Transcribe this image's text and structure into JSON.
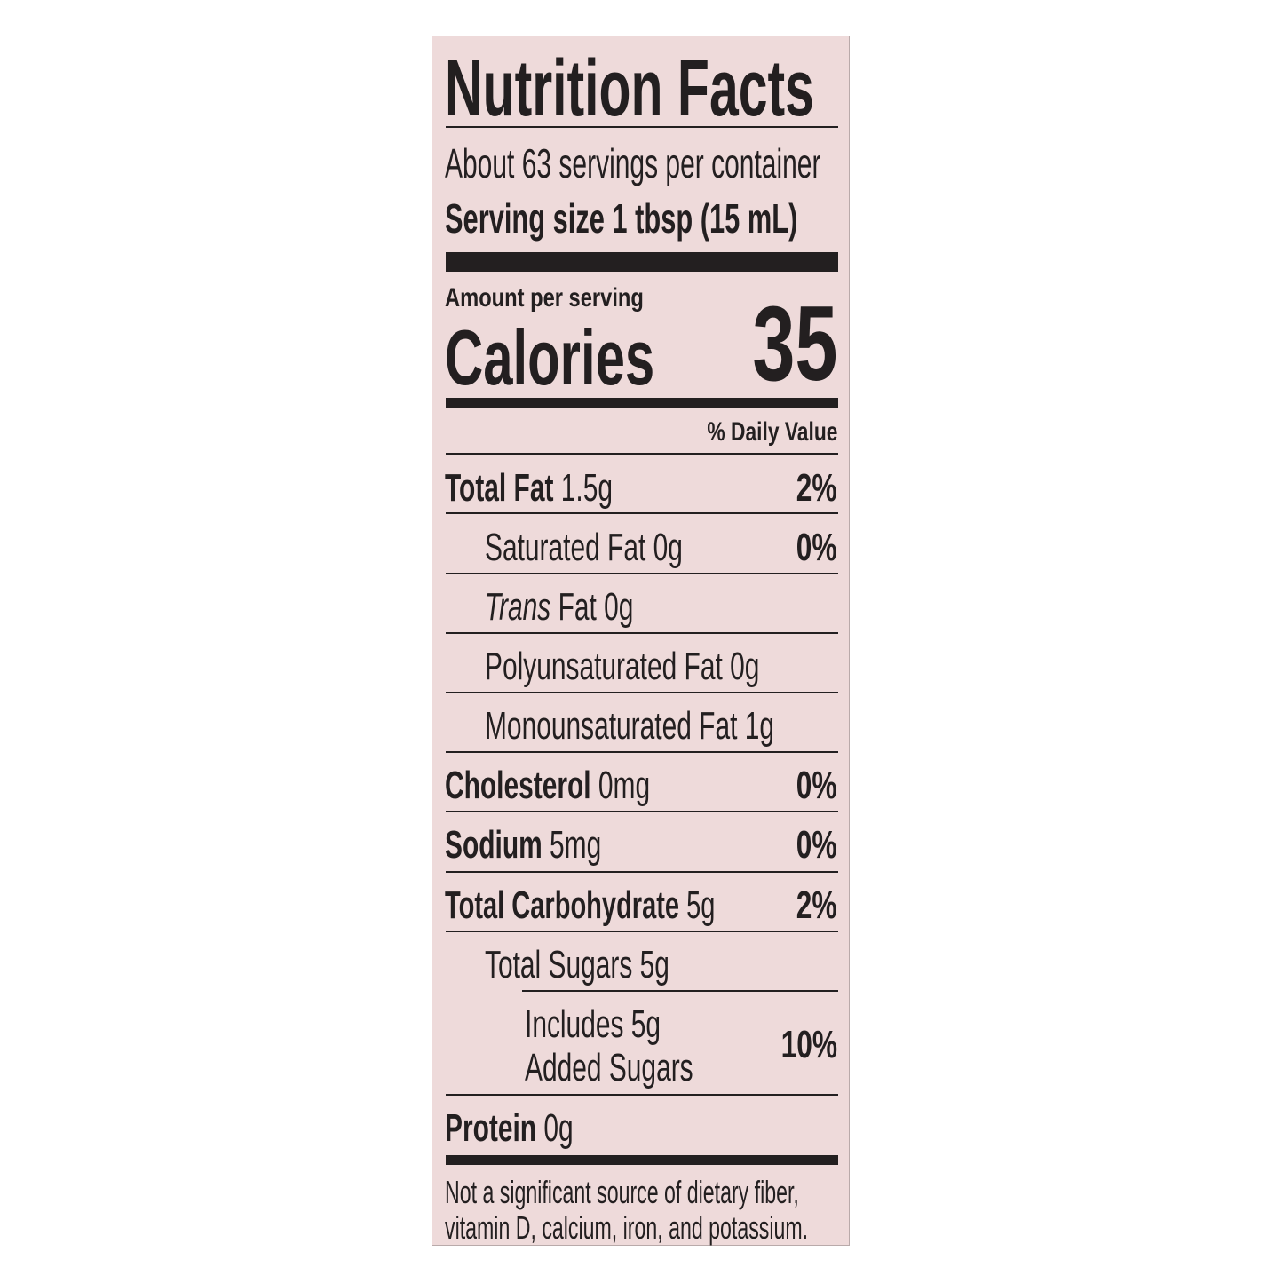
{
  "title": "Nutrition Facts",
  "servings_per_container": "About 63 servings per container",
  "serving_size": "Serving size 1 tbsp (15 mL)",
  "amount_per_serving": "Amount per serving",
  "calories_label": "Calories",
  "calories_value": "35",
  "daily_value_header": "% Daily Value",
  "nutrients": [
    {
      "label": "Total Fat",
      "amount": "1.5g",
      "dv": "2%"
    },
    {
      "label": "Saturated Fat",
      "amount": "0g",
      "dv": "0%"
    },
    {
      "label": "Trans",
      "label_rest": "Fat",
      "amount": "0g"
    },
    {
      "label": "Polyunsaturated Fat",
      "amount": "0g"
    },
    {
      "label": "Monounsaturated Fat",
      "amount": "1g"
    },
    {
      "label": "Cholesterol",
      "amount": "0mg",
      "dv": "0%"
    },
    {
      "label": "Sodium",
      "amount": "5mg",
      "dv": "0%"
    },
    {
      "label": "Total Carbohydrate",
      "amount": "5g",
      "dv": "2%"
    },
    {
      "label": "Total Sugars",
      "amount": "5g"
    },
    {
      "label": "Includes 5g",
      "label2": "Added Sugars",
      "dv": "10%"
    },
    {
      "label": "Protein",
      "amount": "0g"
    }
  ],
  "footnote_line1": "Not a significant source of dietary fiber,",
  "footnote_line2": "vitamin D, calcium, iron, and potassium.",
  "colors": {
    "background": "#eedada",
    "text": "#231f20"
  }
}
